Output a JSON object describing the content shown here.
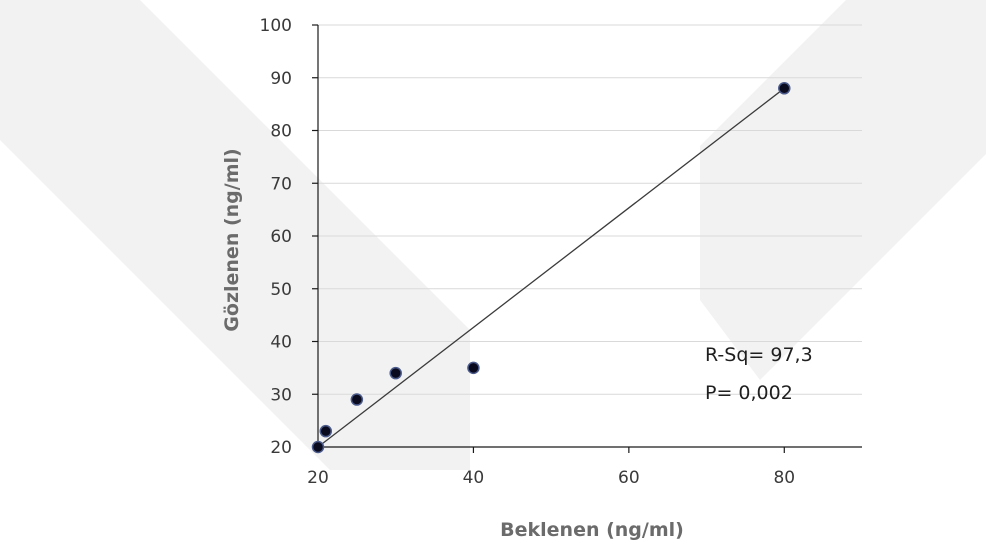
{
  "chart_data": {
    "type": "scatter",
    "title": "",
    "xlabel": "Beklenen (ng/ml)",
    "ylabel": "Gözlenen (ng/ml)",
    "xlim": [
      20,
      90
    ],
    "ylim": [
      20,
      100
    ],
    "xticks": [
      20,
      40,
      60,
      80
    ],
    "yticks": [
      20,
      30,
      40,
      50,
      60,
      70,
      80,
      90,
      100
    ],
    "grid": "horizontal",
    "legend": "none",
    "points": [
      {
        "x": 20,
        "y": 20
      },
      {
        "x": 21,
        "y": 23
      },
      {
        "x": 25,
        "y": 29
      },
      {
        "x": 30,
        "y": 34
      },
      {
        "x": 40,
        "y": 35
      },
      {
        "x": 80,
        "y": 88
      }
    ],
    "trendline": {
      "x1": 20,
      "y1": 20,
      "x2": 80,
      "y2": 88
    },
    "annotations": [
      "R-Sq= 97,3",
      "P= 0,002"
    ],
    "colors": {
      "point": "#0a0a1e",
      "point_edge": "#4a5a8a",
      "line": "#3b3b3b",
      "grid": "#d9d9d9",
      "axis": "#1a1a1a",
      "watermark": "#f2f2f2"
    }
  }
}
